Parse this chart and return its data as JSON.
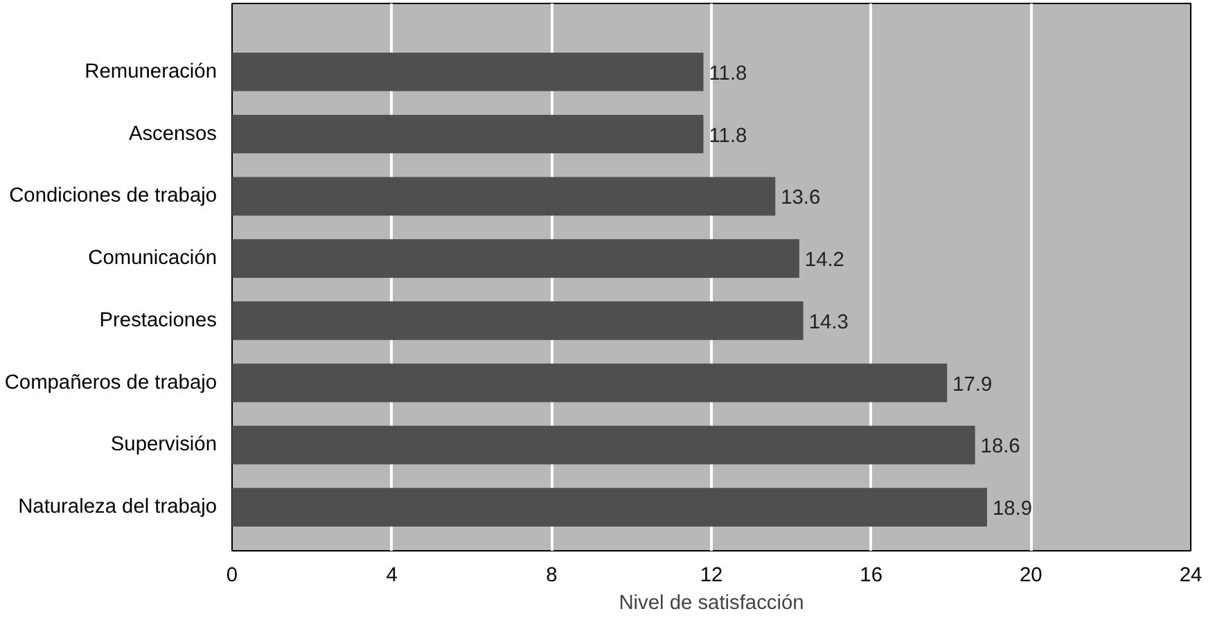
{
  "chart_data": {
    "type": "bar",
    "orientation": "horizontal",
    "xlabel": "Nivel de satisfacción",
    "categories": [
      "Remuneración",
      "Ascensos",
      "Condiciones de trabajo",
      "Comunicación",
      "Prestaciones",
      "Compañeros de trabajo",
      "Supervisión",
      "Naturaleza del trabajo"
    ],
    "values": [
      11.8,
      11.8,
      13.6,
      14.2,
      14.3,
      17.9,
      18.6,
      18.9
    ],
    "color": "#4f4f4f",
    "xlim": [
      0,
      24
    ],
    "xticks": [
      0,
      4,
      8,
      12,
      16,
      20,
      24
    ],
    "grid": "x",
    "data_labels": true
  }
}
